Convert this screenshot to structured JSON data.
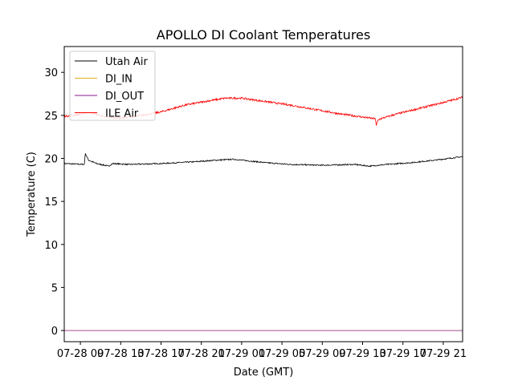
{
  "chart_data": {
    "type": "line",
    "title": "APOLLO DI Coolant Temperatures",
    "xlabel": "Date (GMT)",
    "ylabel": "Temperature (C)",
    "x_tick_labels": [
      "07-28 09",
      "07-28 13",
      "07-28 17",
      "07-28 21",
      "07-29 01",
      "07-29 05",
      "07-29 09",
      "07-29 13",
      "07-29 17",
      "07-29 21"
    ],
    "x_tick_hours": [
      2,
      7,
      12,
      17,
      22,
      27,
      32,
      37,
      42,
      47
    ],
    "xlim_hours": [
      0,
      49.4
    ],
    "ylim": [
      -1.3,
      33
    ],
    "y_ticks": [
      0,
      5,
      10,
      15,
      20,
      25,
      30
    ],
    "legend_position": "upper-left",
    "series": [
      {
        "name": "Utah Air",
        "color": "#000000",
        "x": [
          0,
          2.5,
          2.6,
          3.0,
          4.0,
          5.5,
          6.0,
          8.0,
          12,
          16,
          19,
          21,
          22,
          23,
          25,
          28,
          32,
          36,
          37.8,
          40,
          43,
          46,
          49.4
        ],
        "y": [
          19.4,
          19.3,
          20.6,
          19.8,
          19.4,
          19.1,
          19.4,
          19.3,
          19.4,
          19.6,
          19.8,
          19.9,
          19.8,
          19.7,
          19.5,
          19.3,
          19.2,
          19.3,
          19.1,
          19.3,
          19.5,
          19.8,
          20.2
        ]
      },
      {
        "name": "DI_IN",
        "color": "#e0b020",
        "x": [
          0,
          49.4
        ],
        "y": [
          0,
          0
        ]
      },
      {
        "name": "DI_OUT",
        "color": "#8b1a8b",
        "x": [
          0,
          49.4
        ],
        "y": [
          0,
          0
        ]
      },
      {
        "name": "ILE Air",
        "color": "#ff0000",
        "x": [
          0,
          2,
          3,
          5,
          7,
          9,
          12,
          15,
          18,
          20,
          22,
          25,
          28,
          31,
          34,
          37,
          38.6,
          38.7,
          38.9,
          39.2,
          41,
          44,
          47,
          49.4
        ],
        "y": [
          24.9,
          25.1,
          25.4,
          24.8,
          24.7,
          24.9,
          25.4,
          26.2,
          26.7,
          27.0,
          27.0,
          26.6,
          26.2,
          25.7,
          25.2,
          24.8,
          24.6,
          23.8,
          24.4,
          24.6,
          25.1,
          25.8,
          26.5,
          27.1
        ]
      }
    ]
  }
}
